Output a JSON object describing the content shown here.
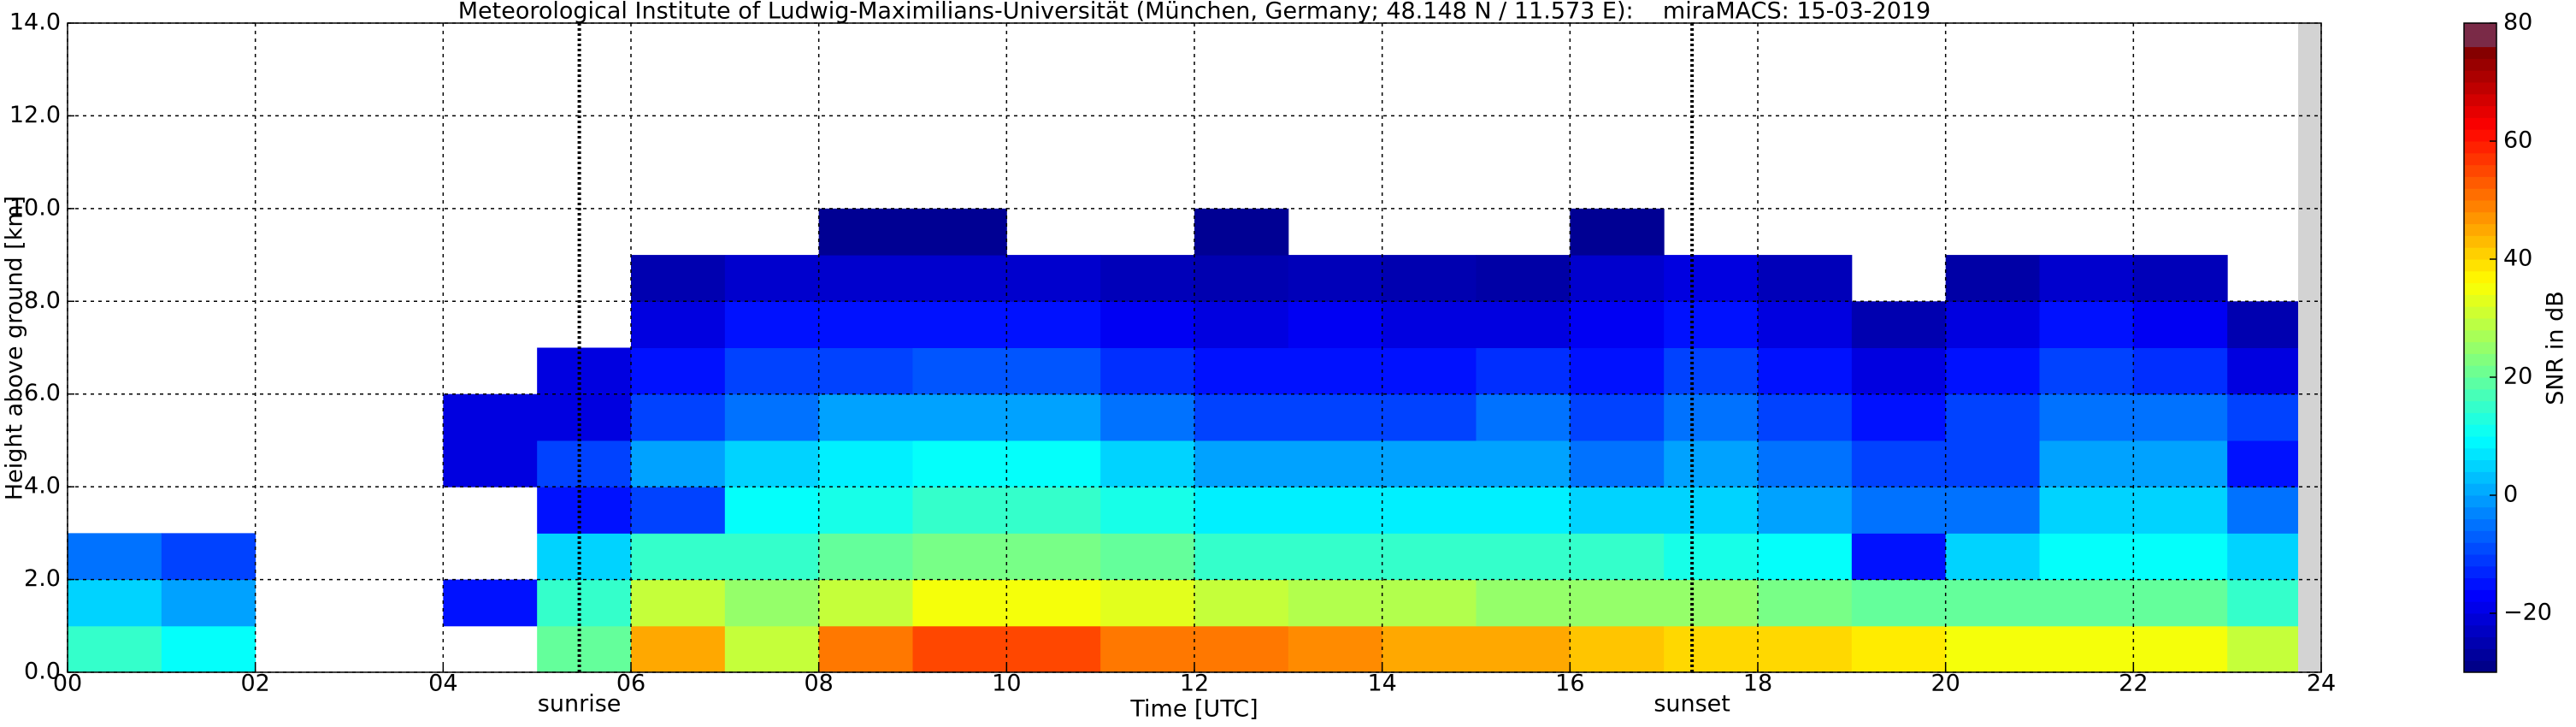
{
  "chart_data": {
    "type": "heatmap",
    "title": "Meteorological Institute of Ludwig-Maximilians-Universität (München, Germany; 48.148 N / 11.573 E):    miraMACS: 15-03-2019",
    "x_label": "Time [UTC]",
    "y_label": "Height above ground [km]",
    "time_bins": [
      0,
      1,
      2,
      3,
      4,
      5,
      6,
      7,
      8,
      9,
      10,
      11,
      12,
      13,
      14,
      15,
      16,
      17,
      18,
      19,
      20,
      21,
      22,
      23,
      24
    ],
    "height_bins": [
      0,
      1,
      2,
      3,
      4,
      5,
      6,
      7,
      8,
      9,
      10,
      11,
      12,
      13,
      14
    ],
    "z": [
      [
        15,
        10,
        null,
        null,
        null,
        20,
        45,
        30,
        50,
        55,
        55,
        50,
        50,
        48,
        45,
        45,
        42,
        40,
        40,
        38,
        35,
        35,
        35,
        30
      ],
      [
        5,
        0,
        null,
        null,
        -15,
        15,
        30,
        25,
        30,
        35,
        35,
        33,
        30,
        28,
        28,
        25,
        25,
        25,
        22,
        20,
        20,
        20,
        20,
        15
      ],
      [
        -5,
        -10,
        null,
        null,
        null,
        5,
        15,
        15,
        20,
        22,
        22,
        20,
        15,
        15,
        15,
        15,
        15,
        12,
        10,
        -15,
        5,
        10,
        10,
        5
      ],
      [
        null,
        null,
        null,
        null,
        null,
        -15,
        -10,
        10,
        12,
        15,
        15,
        12,
        8,
        8,
        8,
        8,
        5,
        5,
        0,
        -5,
        -5,
        5,
        5,
        -5
      ],
      [
        null,
        null,
        null,
        null,
        -20,
        -10,
        0,
        5,
        8,
        10,
        10,
        5,
        0,
        0,
        0,
        0,
        -5,
        0,
        -5,
        -10,
        -10,
        0,
        0,
        -15
      ],
      [
        null,
        null,
        null,
        null,
        -20,
        -20,
        -10,
        -5,
        0,
        0,
        0,
        -5,
        -10,
        -10,
        -10,
        -5,
        -10,
        -5,
        -10,
        -15,
        -10,
        -5,
        -5,
        -10
      ],
      [
        null,
        null,
        null,
        null,
        null,
        -20,
        -15,
        -10,
        -10,
        -8,
        -8,
        -12,
        -15,
        -15,
        -15,
        -12,
        -15,
        -10,
        -15,
        -20,
        -15,
        -10,
        -12,
        -20
      ],
      [
        null,
        null,
        null,
        null,
        null,
        null,
        -20,
        -15,
        -15,
        -15,
        -15,
        -18,
        -20,
        -18,
        -20,
        -20,
        -18,
        -15,
        -20,
        -25,
        -20,
        -15,
        -18,
        -25
      ],
      [
        null,
        null,
        null,
        null,
        null,
        null,
        -25,
        -22,
        -22,
        -22,
        -22,
        -24,
        -25,
        -24,
        -25,
        -26,
        -22,
        -20,
        -24,
        null,
        -26,
        -22,
        -24,
        null
      ],
      [
        null,
        null,
        null,
        null,
        null,
        null,
        null,
        null,
        -28,
        -28,
        null,
        null,
        -28,
        null,
        null,
        null,
        -28,
        null,
        null,
        null,
        null,
        null,
        null,
        null
      ],
      [
        null,
        null,
        null,
        null,
        null,
        null,
        null,
        null,
        null,
        null,
        null,
        null,
        null,
        null,
        null,
        null,
        null,
        null,
        null,
        null,
        null,
        null,
        null,
        null
      ],
      [
        null,
        null,
        null,
        null,
        null,
        null,
        null,
        null,
        null,
        null,
        null,
        null,
        null,
        null,
        null,
        null,
        null,
        null,
        null,
        null,
        null,
        null,
        null,
        null
      ],
      [
        null,
        null,
        null,
        null,
        null,
        null,
        null,
        null,
        null,
        null,
        null,
        null,
        null,
        null,
        null,
        null,
        null,
        null,
        null,
        null,
        null,
        null,
        null,
        null
      ],
      [
        null,
        null,
        null,
        null,
        null,
        null,
        null,
        null,
        null,
        null,
        null,
        null,
        null,
        null,
        null,
        null,
        null,
        null,
        null,
        null,
        null,
        null,
        null,
        null
      ]
    ],
    "xlim": [
      0,
      24
    ],
    "xticks": [
      {
        "value": 0,
        "label": "00"
      },
      {
        "value": 2,
        "label": "02"
      },
      {
        "value": 4,
        "label": "04"
      },
      {
        "value": 6,
        "label": "06"
      },
      {
        "value": 8,
        "label": "08"
      },
      {
        "value": 10,
        "label": "10"
      },
      {
        "value": 12,
        "label": "12"
      },
      {
        "value": 14,
        "label": "14"
      },
      {
        "value": 16,
        "label": "16"
      },
      {
        "value": 18,
        "label": "18"
      },
      {
        "value": 20,
        "label": "20"
      },
      {
        "value": 22,
        "label": "22"
      },
      {
        "value": 24,
        "label": "24"
      }
    ],
    "ylim": [
      0,
      14
    ],
    "yticks": [
      {
        "value": 0,
        "label": "0.0"
      },
      {
        "value": 2,
        "label": "2.0"
      },
      {
        "value": 4,
        "label": "4.0"
      },
      {
        "value": 6,
        "label": "6.0"
      },
      {
        "value": 8,
        "label": "8.0"
      },
      {
        "value": 10,
        "label": "10.0"
      },
      {
        "value": 12,
        "label": "12.0"
      },
      {
        "value": 14,
        "label": "14.0"
      }
    ],
    "grid": true,
    "annotations": [
      {
        "text": "sunrise",
        "x": 5.45
      },
      {
        "text": "sunset",
        "x": 17.3
      }
    ],
    "colorbar": {
      "label": "SNR in dB",
      "lim": [
        -30,
        80
      ],
      "ticks": [
        {
          "value": -20,
          "label": "−20"
        },
        0,
        20,
        40,
        60,
        80
      ]
    }
  }
}
